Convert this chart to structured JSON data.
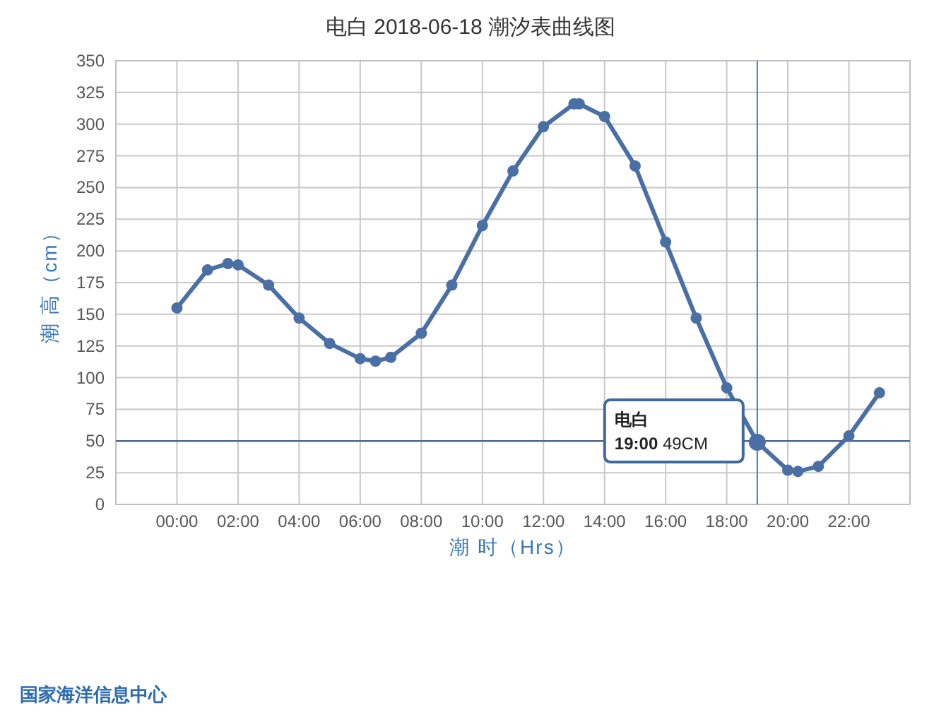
{
  "chart_data": {
    "type": "line",
    "title": "电白 2018-06-18 潮汐表曲线图",
    "xlabel": "潮 时（Hrs）",
    "ylabel": "潮 高（cm）",
    "x": [
      0,
      1,
      1.667,
      2,
      3,
      4,
      5,
      6,
      6.5,
      7,
      8,
      9,
      10,
      11,
      12,
      13,
      13.17,
      14,
      15,
      16,
      17,
      18,
      19,
      20,
      20.33,
      21,
      22,
      23
    ],
    "series": [
      {
        "color": "#4a6fa5",
        "values": [
          155,
          185,
          190,
          189,
          173,
          147,
          127,
          115,
          113,
          116,
          135,
          173,
          220,
          263,
          298,
          316,
          316,
          306,
          267,
          207,
          147,
          92,
          49,
          27,
          26,
          30,
          54,
          88
        ]
      }
    ],
    "xlim": [
      -2,
      24
    ],
    "xticks": [
      {
        "value": 0,
        "label": "00:00"
      },
      {
        "value": 2,
        "label": "02:00"
      },
      {
        "value": 4,
        "label": "04:00"
      },
      {
        "value": 6,
        "label": "06:00"
      },
      {
        "value": 8,
        "label": "08:00"
      },
      {
        "value": 10,
        "label": "10:00"
      },
      {
        "value": 12,
        "label": "12:00"
      },
      {
        "value": 14,
        "label": "14:00"
      },
      {
        "value": 16,
        "label": "16:00"
      },
      {
        "value": 18,
        "label": "18:00"
      },
      {
        "value": 20,
        "label": "20:00"
      },
      {
        "value": 22,
        "label": "22:00"
      }
    ],
    "ylim": [
      0,
      350
    ],
    "yticks": [
      0,
      25,
      50,
      75,
      100,
      125,
      150,
      175,
      200,
      225,
      250,
      275,
      300,
      325,
      350
    ],
    "ref_lines": [
      {
        "axis": "y",
        "value": 50,
        "color": "#4f6a8f"
      },
      {
        "axis": "x",
        "value": 19,
        "color": "#3a7bbf"
      }
    ],
    "annotations": [
      {
        "text": "**电白**\n**19:00** 49CM",
        "x": 19,
        "y": 49
      },
      "国家海洋信息中心"
    ],
    "grid": true,
    "marker": "circle",
    "line_style": "solid"
  }
}
